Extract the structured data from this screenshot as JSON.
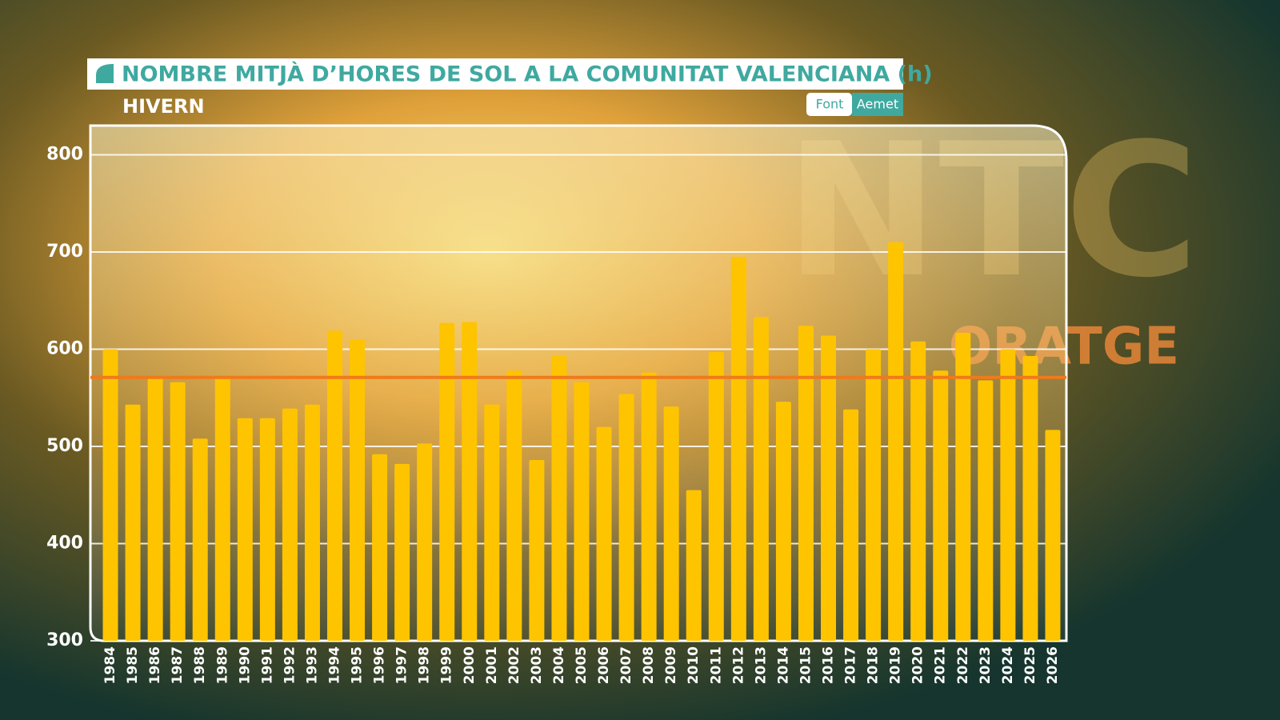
{
  "chart_data": {
    "type": "bar",
    "title": "NOMBRE MITJÀ D’HORES DE SOL A LA COMUNITAT VALENCIANA (h)",
    "subtitle": "HIVERN",
    "source_label": "Font",
    "source": "Aemet",
    "watermark": [
      "NTC",
      "ORATGE"
    ],
    "categories": [
      "1984",
      "1985",
      "1986",
      "1987",
      "1988",
      "1989",
      "1990",
      "1991",
      "1992",
      "1993",
      "1994",
      "1995",
      "1996",
      "1997",
      "1998",
      "1999",
      "2000",
      "2001",
      "2002",
      "2003",
      "2004",
      "2005",
      "2006",
      "2007",
      "2008",
      "2009",
      "2010",
      "2011",
      "2012",
      "2013",
      "2014",
      "2015",
      "2016",
      "2017",
      "2018",
      "2019",
      "2020",
      "2021",
      "2022",
      "2023",
      "2024",
      "2025",
      "2026"
    ],
    "values": [
      600,
      543,
      571,
      566,
      508,
      571,
      529,
      529,
      539,
      543,
      619,
      610,
      492,
      482,
      503,
      627,
      628,
      543,
      578,
      486,
      593,
      566,
      520,
      554,
      576,
      541,
      455,
      597,
      695,
      633,
      546,
      624,
      614,
      538,
      600,
      710,
      608,
      578,
      617,
      568,
      600,
      593,
      517
    ],
    "color": "#ffc400",
    "reference_line": 571,
    "reference_color": "#f07a1a",
    "ylim": [
      300,
      830
    ],
    "yticks": [
      300,
      400,
      500,
      600,
      700,
      800
    ],
    "grid": true
  }
}
